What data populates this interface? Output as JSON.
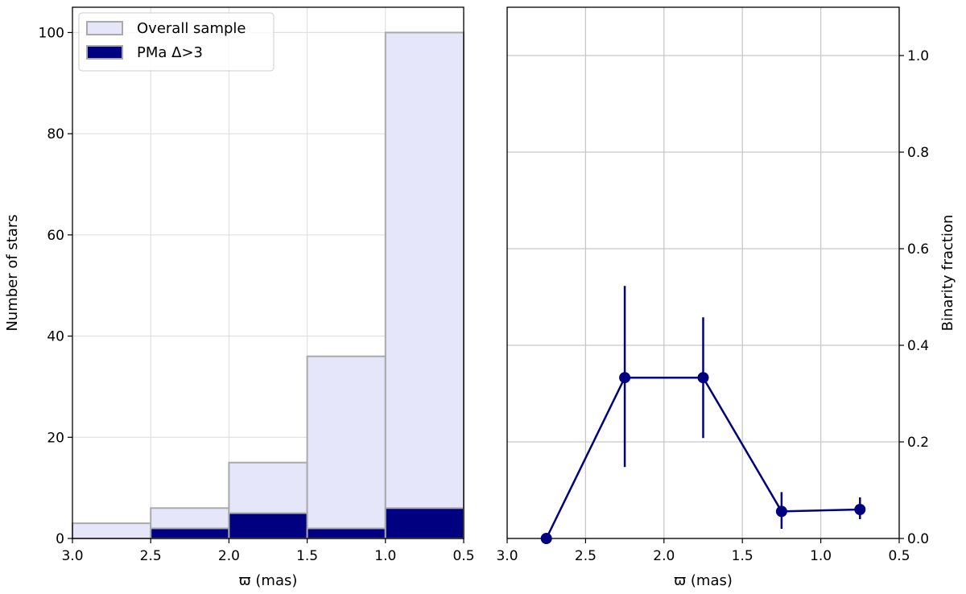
{
  "chart_data": [
    {
      "type": "bar",
      "subtype": "histogram",
      "xlabel": "ϖ (mas)",
      "ylabel": "Number of stars",
      "xlim": [
        3.0,
        0.5
      ],
      "ylim": [
        0,
        105
      ],
      "x_inverted": true,
      "grid": true,
      "legend_position": "top-left",
      "bin_edges": [
        3.0,
        2.5,
        2.0,
        1.5,
        1.0,
        0.5
      ],
      "xticks": [
        "3.0",
        "2.5",
        "2.0",
        "1.5",
        "1.0",
        "0.5"
      ],
      "yticks": [
        "0",
        "20",
        "40",
        "60",
        "80",
        "100"
      ],
      "series": [
        {
          "name": "Overall sample",
          "values": [
            3,
            6,
            15,
            36,
            100
          ],
          "color": "#e6e6fa",
          "edge_color": "#a9a9a9"
        },
        {
          "name": "PMa Δ>3",
          "values": [
            0,
            2,
            5,
            2,
            6
          ],
          "color": "#000080",
          "edge_color": "#a9a9a9"
        }
      ]
    },
    {
      "type": "line",
      "ylabel": "Binarity fraction",
      "xlabel": "ϖ (mas)",
      "xlim": [
        3.0,
        0.5
      ],
      "ylim": [
        0,
        1.1
      ],
      "x_inverted": true,
      "y_axis_side": "right",
      "grid": true,
      "xticks": [
        "3.0",
        "2.5",
        "2.0",
        "1.5",
        "1.0",
        "0.5"
      ],
      "yticks": [
        "0.0",
        "0.2",
        "0.4",
        "0.6",
        "0.8",
        "1.0"
      ],
      "color": "#000080",
      "x": [
        2.75,
        2.25,
        1.75,
        1.25,
        0.75
      ],
      "y": [
        0.0,
        0.333,
        0.333,
        0.056,
        0.06
      ],
      "err_low": [
        0.0,
        0.185,
        0.125,
        0.036,
        0.02
      ],
      "err_high": [
        0.0,
        0.19,
        0.125,
        0.04,
        0.025
      ]
    }
  ]
}
